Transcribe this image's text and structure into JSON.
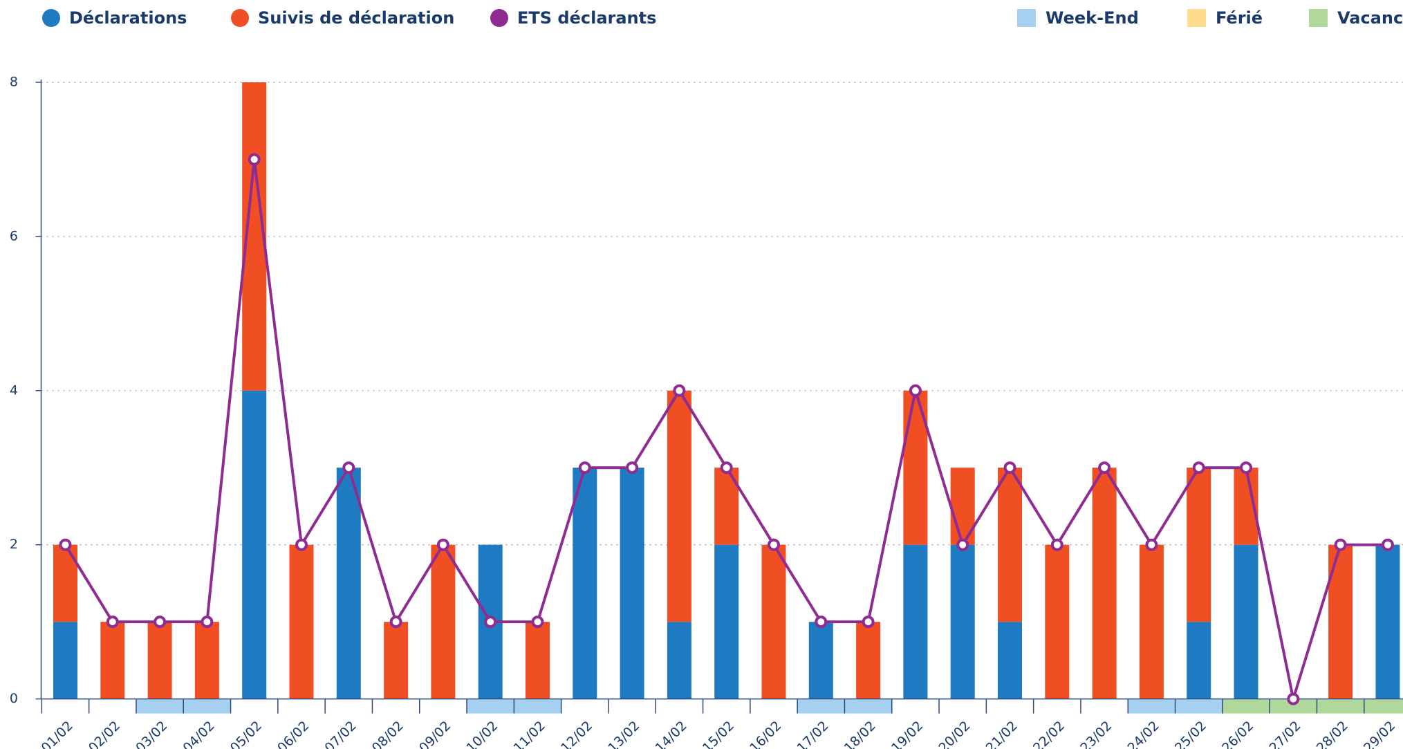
{
  "chart_data": {
    "type": "bar-line",
    "categories": [
      "01/02",
      "02/02",
      "03/02",
      "04/02",
      "05/02",
      "06/02",
      "07/02",
      "08/02",
      "09/02",
      "10/02",
      "11/02",
      "12/02",
      "13/02",
      "14/02",
      "15/02",
      "16/02",
      "17/02",
      "18/02",
      "19/02",
      "20/02",
      "21/02",
      "22/02",
      "23/02",
      "24/02",
      "25/02",
      "26/02",
      "27/02",
      "28/02",
      "29/02"
    ],
    "series": [
      {
        "name": "Déclarations",
        "color": "#1f7bc1",
        "kind": "bar",
        "values": [
          1,
          0,
          0,
          0,
          4,
          0,
          3,
          0,
          0,
          2,
          0,
          3,
          3,
          1,
          2,
          0,
          1,
          0,
          2,
          2,
          1,
          0,
          0,
          0,
          1,
          2,
          0,
          0,
          2
        ]
      },
      {
        "name": "Suivis de déclaration",
        "color": "#f04e23",
        "kind": "bar",
        "values": [
          1,
          1,
          1,
          1,
          4,
          2,
          0,
          1,
          2,
          0,
          1,
          0,
          0,
          3,
          1,
          2,
          0,
          1,
          2,
          1,
          2,
          2,
          3,
          2,
          2,
          1,
          0,
          2,
          0
        ]
      },
      {
        "name": "ETS déclarants",
        "color": "#8e2c92",
        "kind": "line",
        "values": [
          2,
          1,
          1,
          1,
          7,
          2,
          3,
          1,
          2,
          1,
          1,
          3,
          3,
          4,
          3,
          2,
          1,
          1,
          4,
          2,
          3,
          2,
          3,
          2,
          3,
          3,
          0,
          2,
          2
        ]
      }
    ],
    "calendar_legend": [
      {
        "name": "Week-End",
        "color": "#a6d0f0"
      },
      {
        "name": "Férié",
        "color": "#fddc8f"
      },
      {
        "name": "Vacances",
        "color": "#b1d89b"
      }
    ],
    "day_kind": [
      null,
      null,
      0,
      0,
      null,
      null,
      null,
      null,
      null,
      0,
      0,
      null,
      null,
      null,
      null,
      null,
      0,
      0,
      null,
      null,
      null,
      null,
      null,
      0,
      0,
      2,
      2,
      2,
      2
    ],
    "ylim": [
      0,
      8
    ],
    "yticks": [
      0,
      2,
      4,
      6,
      8
    ],
    "grid": true
  }
}
